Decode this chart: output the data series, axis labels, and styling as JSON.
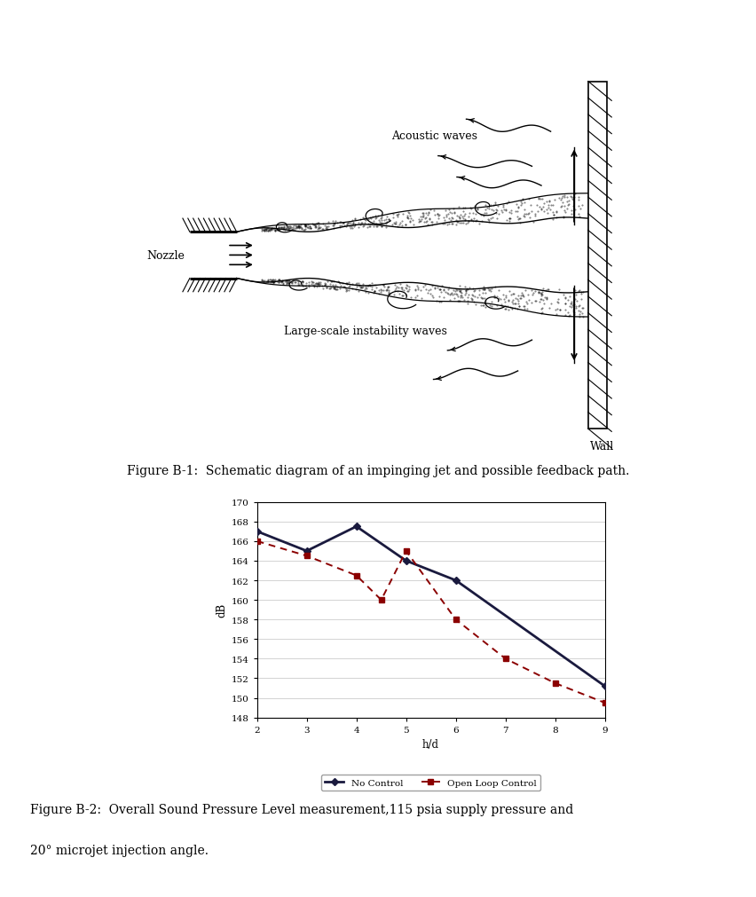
{
  "fig_width": 8.52,
  "fig_height": 10.12,
  "bg_color": "#ffffff",
  "schematic": {
    "nozzle_label": "Nozzle",
    "acoustic_label": "Acoustic waves",
    "instability_label": "Large-scale instability waves",
    "wall_label": "Wall"
  },
  "caption1": "Figure B-1:  Schematic diagram of an impinging jet and possible feedback path.",
  "chart": {
    "no_control_x": [
      2,
      3,
      4,
      5,
      6,
      9
    ],
    "no_control_y": [
      167.0,
      165.0,
      167.5,
      164.0,
      162.0,
      151.2
    ],
    "open_loop_x": [
      2,
      3,
      4,
      4.5,
      5,
      6,
      7,
      8,
      9
    ],
    "open_loop_y": [
      166.0,
      164.5,
      162.5,
      160.0,
      165.0,
      158.0,
      154.0,
      151.5,
      149.5
    ],
    "ylim": [
      148,
      170
    ],
    "yticks": [
      148,
      150,
      152,
      154,
      156,
      158,
      160,
      162,
      164,
      166,
      168,
      170
    ],
    "xlim": [
      2,
      9
    ],
    "xticks": [
      2,
      3,
      4,
      5,
      6,
      7,
      8,
      9
    ],
    "xlabel": "h/d",
    "ylabel": "dB",
    "no_control_color": "#1a1a3e",
    "open_loop_color": "#8b0000",
    "legend_no_control": "No Control",
    "legend_open_loop": "Open Loop Control"
  },
  "caption2_line1": "Figure B-2:  Overall Sound Pressure Level measurement,115 psia supply pressure and",
  "caption2_line2": "20° microjet injection angle."
}
